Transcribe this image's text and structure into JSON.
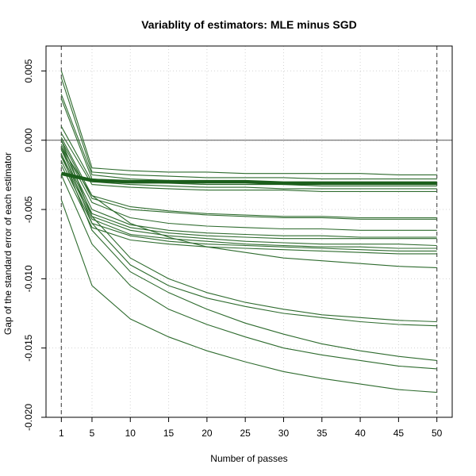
{
  "chart_data": {
    "type": "line",
    "title": "Variablity of estimators: MLE minus SGD",
    "xlabel": "Number of passes",
    "ylabel": "Gap of the standard error of each estimator",
    "x": [
      1,
      5,
      10,
      15,
      20,
      25,
      30,
      35,
      40,
      45,
      50
    ],
    "xticks": [
      1,
      5,
      10,
      15,
      20,
      25,
      30,
      35,
      40,
      45,
      50
    ],
    "xlim": [
      -1,
      52
    ],
    "yticks": [
      -0.02,
      -0.015,
      -0.01,
      -0.005,
      0.0,
      0.005
    ],
    "ytick_labels": [
      "-0.020",
      "-0.015",
      "-0.010",
      "-0.005",
      "0.000",
      "0.005"
    ],
    "ylim": [
      -0.02,
      0.0068
    ],
    "grid": true,
    "reference_lines": {
      "horizontal": [
        0.0
      ],
      "vertical": [
        1,
        50
      ]
    },
    "line_color": "#2e6b2e",
    "mean_line_color": "#1b5e1b",
    "series": [
      {
        "values": [
          0.005,
          -0.002,
          -0.0022,
          -0.0023,
          -0.0023,
          -0.0024,
          -0.0024,
          -0.0024,
          -0.0024,
          -0.0025,
          -0.0025
        ]
      },
      {
        "values": [
          0.0045,
          -0.0023,
          -0.0025,
          -0.0026,
          -0.0027,
          -0.0027,
          -0.0027,
          -0.0028,
          -0.0028,
          -0.0028,
          -0.0028
        ]
      },
      {
        "values": [
          0.0033,
          -0.0025,
          -0.0028,
          -0.0029,
          -0.003,
          -0.003,
          -0.0031,
          -0.0031,
          -0.0031,
          -0.0031,
          -0.0031
        ]
      },
      {
        "values": [
          0.003,
          -0.0028,
          -0.003,
          -0.0031,
          -0.0032,
          -0.0032,
          -0.0032,
          -0.0033,
          -0.0033,
          -0.0033,
          -0.0033
        ]
      },
      {
        "values": [
          0.001,
          -0.003,
          -0.0032,
          -0.0033,
          -0.0034,
          -0.0034,
          -0.0035,
          -0.0035,
          -0.0035,
          -0.0035,
          -0.0035
        ]
      },
      {
        "values": [
          0.0005,
          -0.0032,
          -0.0034,
          -0.0035,
          -0.0036,
          -0.0036,
          -0.0036,
          -0.0037,
          -0.0037,
          -0.0037,
          -0.0037
        ]
      },
      {
        "values": [
          0.0002,
          -0.004,
          -0.0048,
          -0.0051,
          -0.0053,
          -0.0054,
          -0.0055,
          -0.0055,
          -0.0056,
          -0.0056,
          -0.0056
        ]
      },
      {
        "values": [
          0.0,
          -0.0042,
          -0.005,
          -0.0052,
          -0.0054,
          -0.0055,
          -0.0056,
          -0.0056,
          -0.0057,
          -0.0057,
          -0.0057
        ]
      },
      {
        "values": [
          -0.0003,
          -0.0045,
          -0.0056,
          -0.006,
          -0.0062,
          -0.0063,
          -0.0064,
          -0.0064,
          -0.0065,
          -0.0065,
          -0.0065
        ]
      },
      {
        "values": [
          -0.0005,
          -0.005,
          -0.0061,
          -0.0065,
          -0.0067,
          -0.0068,
          -0.0069,
          -0.0069,
          -0.007,
          -0.007,
          -0.007
        ]
      },
      {
        "values": [
          -0.0007,
          -0.0053,
          -0.0063,
          -0.0067,
          -0.0069,
          -0.007,
          -0.0071,
          -0.0071,
          -0.0071,
          -0.0071,
          -0.0071
        ]
      },
      {
        "values": [
          -0.001,
          -0.0055,
          -0.0065,
          -0.0069,
          -0.0071,
          -0.0073,
          -0.0074,
          -0.0075,
          -0.0075,
          -0.0075,
          -0.0076
        ]
      },
      {
        "values": [
          -0.0012,
          -0.0057,
          -0.0068,
          -0.0071,
          -0.0073,
          -0.0075,
          -0.0076,
          -0.0077,
          -0.0077,
          -0.0078,
          -0.0078
        ]
      },
      {
        "values": [
          -0.0015,
          -0.006,
          -0.0069,
          -0.0073,
          -0.0075,
          -0.0076,
          -0.0077,
          -0.0078,
          -0.0079,
          -0.008,
          -0.008
        ]
      },
      {
        "values": [
          -0.0018,
          -0.0063,
          -0.0072,
          -0.0075,
          -0.0077,
          -0.0078,
          -0.0079,
          -0.008,
          -0.0081,
          -0.0082,
          -0.0082
        ]
      },
      {
        "values": [
          -0.0005,
          -0.004,
          -0.006,
          -0.007,
          -0.0077,
          -0.0081,
          -0.0085,
          -0.0087,
          -0.0089,
          -0.0091,
          -0.0092
        ]
      },
      {
        "values": [
          0.0,
          -0.0055,
          -0.0085,
          -0.01,
          -0.011,
          -0.0117,
          -0.0122,
          -0.0126,
          -0.0128,
          -0.013,
          -0.0131
        ]
      },
      {
        "values": [
          -0.0005,
          -0.006,
          -0.009,
          -0.0105,
          -0.0114,
          -0.012,
          -0.0125,
          -0.0128,
          -0.0131,
          -0.0133,
          -0.0134
        ]
      },
      {
        "values": [
          -0.001,
          -0.0065,
          -0.0095,
          -0.011,
          -0.0122,
          -0.0132,
          -0.014,
          -0.0147,
          -0.0152,
          -0.0156,
          -0.0159
        ]
      },
      {
        "values": [
          -0.0025,
          -0.0075,
          -0.0105,
          -0.0122,
          -0.0133,
          -0.0142,
          -0.015,
          -0.0155,
          -0.0159,
          -0.0163,
          -0.0165
        ]
      },
      {
        "values": [
          -0.0043,
          -0.0105,
          -0.0129,
          -0.0142,
          -0.0152,
          -0.016,
          -0.0167,
          -0.0172,
          -0.0176,
          -0.018,
          -0.0182
        ]
      }
    ],
    "mean_series": {
      "values": [
        -0.0024,
        -0.0029,
        -0.003,
        -0.003,
        -0.003,
        -0.003,
        -0.0031,
        -0.0031,
        -0.0031,
        -0.0031,
        -0.0031
      ]
    }
  }
}
